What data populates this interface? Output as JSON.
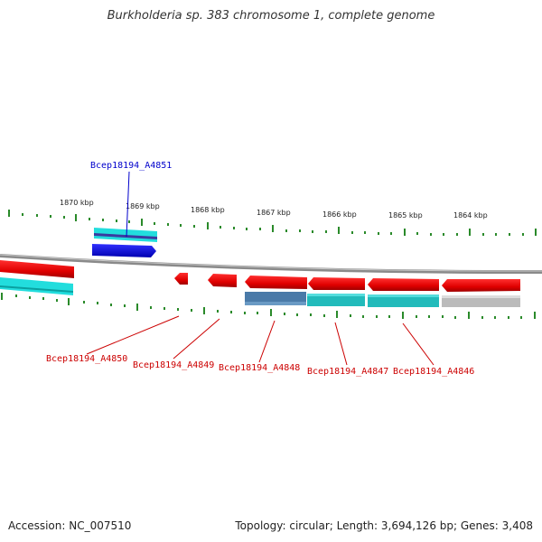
{
  "title": "Burkholderia sp. 383 chromosome 1, complete genome",
  "footer": {
    "accession": "Accession: NC_007510",
    "topology": "Topology: circular; Length: 3,694,126 bp; Genes: 3,408"
  },
  "colors": {
    "forward_gene": "#1010e0",
    "reverse_gene": "#ee0000",
    "forward_label": "#0000cc",
    "reverse_label": "#cc0000",
    "backbone": "#8a8a8a",
    "tick": "#2a8a2a",
    "cog_cyan": "#22dddd",
    "cog_teal": "#22bbbb",
    "cog_steel": "#4a7aa8",
    "cog_grey": "#bbbbbb"
  },
  "scale_labels": [
    "1870 kbp",
    "1869 kbp",
    "1868 kbp",
    "1867 kbp",
    "1866 kbp",
    "1865 kbp",
    "1864 kbp"
  ],
  "gene_labels": {
    "a4851": "Bcep18194_A4851",
    "a4850": "Bcep18194_A4850",
    "a4849": "Bcep18194_A4849",
    "a4848": "Bcep18194_A4848",
    "a4847": "Bcep18194_A4847",
    "a4846": "Bcep18194_A4846"
  }
}
